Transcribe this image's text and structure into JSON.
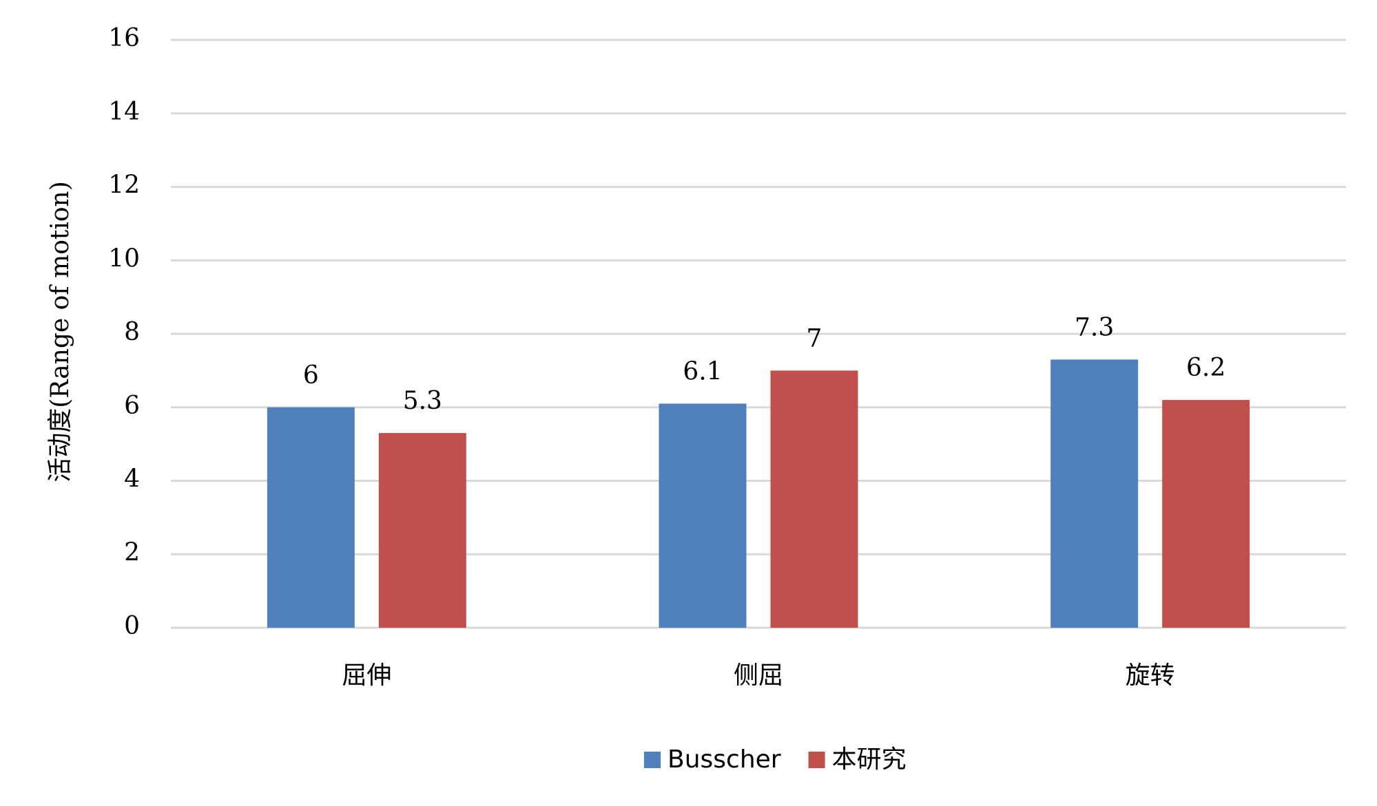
{
  "chart_data": {
    "type": "bar",
    "y_axis_label": "活动度(Range of motion)",
    "categories": [
      "屈伸",
      "侧屈",
      "旋转"
    ],
    "series": [
      {
        "name": "Busscher",
        "color": "#4f81bd",
        "values": [
          6,
          6.1,
          7.3
        ]
      },
      {
        "name": "本研究",
        "color": "#c0504d",
        "values": [
          5.3,
          7,
          6.2
        ]
      }
    ],
    "ylim": [
      0,
      16
    ],
    "yticks": [
      0,
      2,
      4,
      6,
      8,
      10,
      12,
      14,
      16
    ],
    "grid": true,
    "legend": "bottom",
    "data_labels": true
  }
}
